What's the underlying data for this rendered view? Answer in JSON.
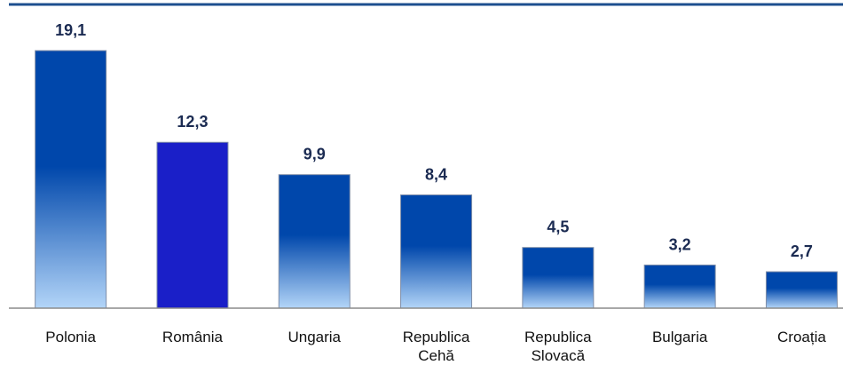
{
  "chart_data": {
    "type": "bar",
    "categories": [
      "Polonia",
      "România",
      "Ungaria",
      "Republica Cehă",
      "Republica Slovacă",
      "Bulgaria",
      "Croația"
    ],
    "values": [
      19.1,
      12.3,
      9.9,
      8.4,
      4.5,
      3.2,
      2.7
    ],
    "value_labels": [
      "19,1",
      "12,3",
      "9,9",
      "8,4",
      "4,5",
      "3,2",
      "2,7"
    ],
    "fills": [
      [
        "#0047ab",
        "#b3d5f8"
      ],
      [
        "#1a1fc8",
        "#1a1fc8"
      ],
      [
        "#0047ab",
        "#b3d5f8"
      ],
      [
        "#0047ab",
        "#b3d5f8"
      ],
      [
        "#0047ab",
        "#b3d5f8"
      ],
      [
        "#0047ab",
        "#b3d5f8"
      ],
      [
        "#0047ab",
        "#b3d5f8"
      ]
    ]
  }
}
